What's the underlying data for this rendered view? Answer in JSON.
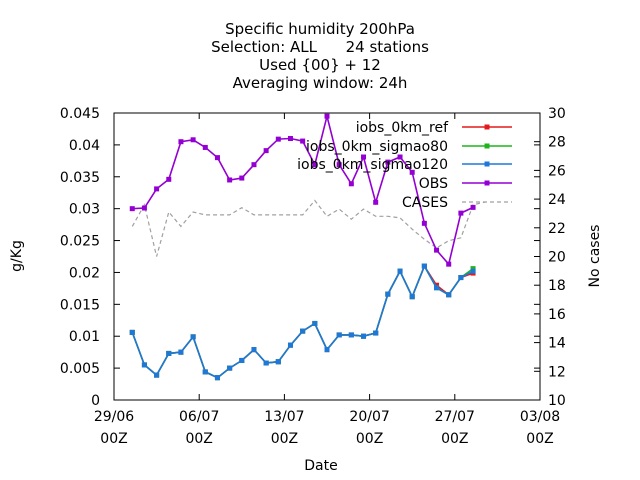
{
  "chart_data": {
    "type": "line",
    "title_lines": [
      "Specific humidity 200hPa",
      "Selection: ALL      24 stations",
      "Used {00} + 12",
      "Averaging window: 24h"
    ],
    "xlabel": "Date",
    "ylabel": "g/Kg",
    "y2label": "No cases",
    "x_ticks": [
      {
        "day": 0,
        "line1": "29/06",
        "line2": "00Z"
      },
      {
        "day": 7,
        "line1": "06/07",
        "line2": "00Z"
      },
      {
        "day": 14,
        "line1": "13/07",
        "line2": "00Z"
      },
      {
        "day": 21,
        "line1": "20/07",
        "line2": "00Z"
      },
      {
        "day": 28,
        "line1": "27/07",
        "line2": "00Z"
      },
      {
        "day": 35,
        "line1": "03/08",
        "line2": "00Z"
      }
    ],
    "xlim": [
      0,
      35
    ],
    "ylim": [
      0,
      0.045
    ],
    "y_ticks": [
      "0",
      "0.005",
      "0.01",
      "0.015",
      "0.02",
      "0.025",
      "0.03",
      "0.035",
      "0.04",
      "0.045"
    ],
    "y2lim": [
      10,
      30
    ],
    "y2_ticks": [
      "10",
      "12",
      "14",
      "16",
      "18",
      "20",
      "22",
      "24",
      "26",
      "28",
      "30"
    ],
    "legend_placement": "top-right",
    "x_days": [
      1.5,
      2.5,
      3.5,
      4.5,
      5.5,
      6.5,
      7.5,
      8.5,
      9.5,
      10.5,
      11.5,
      12.5,
      13.5,
      14.5,
      15.5,
      16.5,
      17.5,
      18.5,
      19.5,
      20.5,
      21.5,
      22.5,
      23.5,
      24.5,
      25.5,
      26.5,
      27.5,
      28.5,
      29.5,
      30.5
    ],
    "series": [
      {
        "name": "iobs_0km_ref",
        "color": "#e41a1c",
        "axis": "y1",
        "values": [
          0.0106,
          0.0055,
          0.0039,
          0.0073,
          0.0075,
          0.0099,
          0.0044,
          0.0035,
          0.005,
          0.0062,
          0.0079,
          0.0058,
          0.006,
          0.0086,
          0.0108,
          0.012,
          0.0079,
          0.0102,
          0.0102,
          0.01,
          0.0105,
          0.0166,
          0.0202,
          0.0162,
          0.021,
          0.018,
          0.0165,
          0.0192,
          0.0199,
          null
        ]
      },
      {
        "name": "iobs_0km_sigmao80",
        "color": "#1fb31f",
        "axis": "y1",
        "values": [
          0.0106,
          0.0055,
          0.0039,
          0.0073,
          0.0075,
          0.0099,
          0.0044,
          0.0035,
          0.005,
          0.0062,
          0.0079,
          0.0058,
          0.006,
          0.0086,
          0.0108,
          0.012,
          0.0079,
          0.0102,
          0.0102,
          0.01,
          0.0105,
          0.0166,
          0.0202,
          0.0162,
          0.021,
          0.0176,
          0.0165,
          0.0192,
          0.0206,
          null
        ]
      },
      {
        "name": "iobs_0km_sigmao120",
        "color": "#1e78d8",
        "axis": "y1",
        "values": [
          0.0106,
          0.0055,
          0.0039,
          0.0073,
          0.0075,
          0.0099,
          0.0044,
          0.0035,
          0.005,
          0.0062,
          0.0079,
          0.0058,
          0.006,
          0.0086,
          0.0108,
          0.012,
          0.0079,
          0.0102,
          0.0102,
          0.01,
          0.0105,
          0.0166,
          0.0202,
          0.0162,
          0.021,
          0.0176,
          0.0165,
          0.0192,
          0.0202,
          null
        ]
      },
      {
        "name": "OBS",
        "color": "#9400d3",
        "axis": "y1",
        "values": [
          0.03,
          0.0301,
          0.0331,
          0.0346,
          0.0405,
          0.0408,
          0.0396,
          0.038,
          0.0345,
          0.0348,
          0.0369,
          0.0391,
          0.0409,
          0.041,
          0.0406,
          0.0369,
          0.0445,
          0.0369,
          0.0339,
          0.0381,
          0.031,
          0.0373,
          0.0381,
          0.0357,
          0.0277,
          0.0235,
          0.0213,
          0.0293,
          0.0302,
          null
        ]
      },
      {
        "name": "CASES",
        "color": "#a0a0a0",
        "axis": "y2",
        "values": [
          22.1,
          23.6,
          20.0,
          23.1,
          22.1,
          23.1,
          22.9,
          22.9,
          22.9,
          23.4,
          22.9,
          22.9,
          22.9,
          22.9,
          22.9,
          23.9,
          22.8,
          23.3,
          22.6,
          23.3,
          22.8,
          22.8,
          22.7,
          21.9,
          21.2,
          20.6,
          21.1,
          21.3,
          23.6,
          23.8
        ]
      }
    ]
  }
}
